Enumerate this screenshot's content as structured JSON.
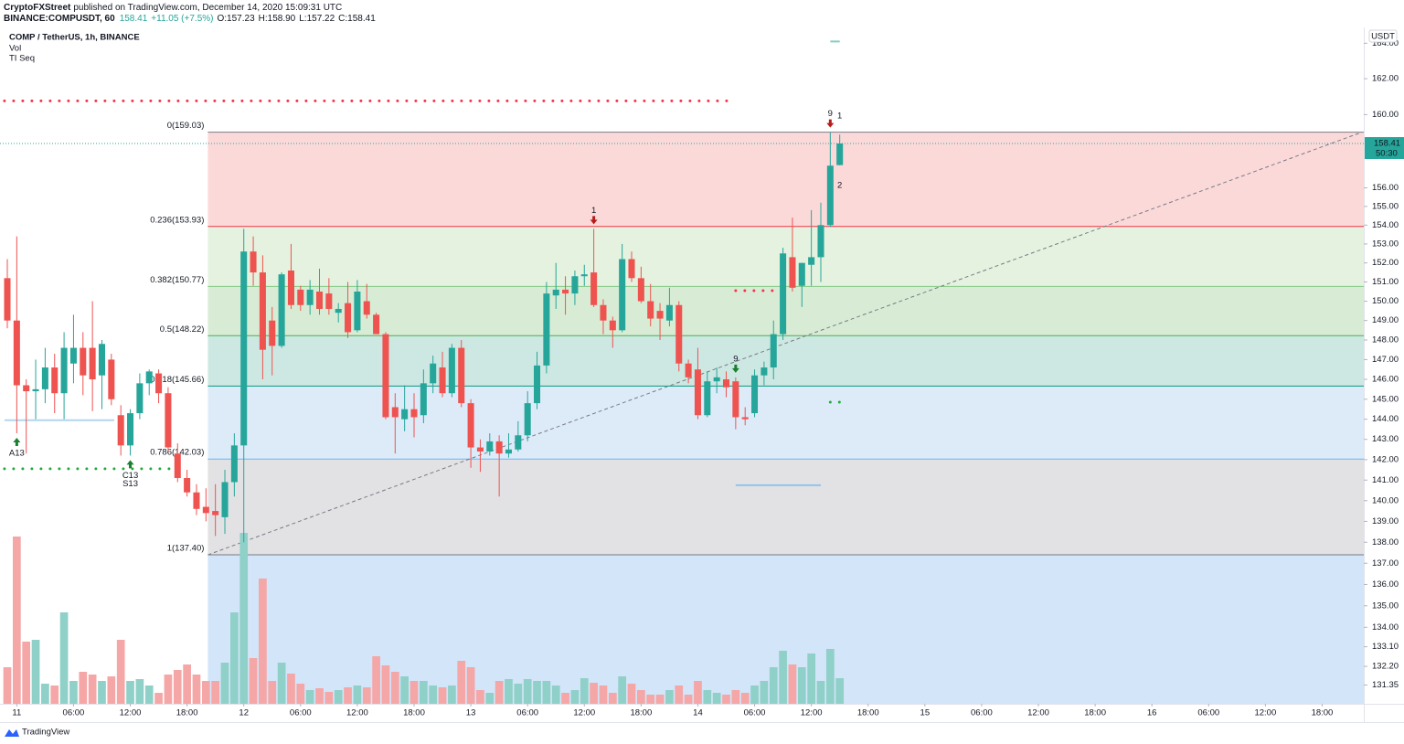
{
  "chart_data": {
    "type": "candlestick",
    "title": "COMP / TetherUS, 1h, BINANCE",
    "indicators": [
      "Vol",
      "TI Seq"
    ],
    "header": {
      "publisher": "CryptoFXStreet",
      "published": "published on TradingView.com, December 14, 2020 15:09:31 UTC",
      "symbol": "BINANCE:COMPUSDT, 60",
      "change": "+11.05 (+7.5%)",
      "ohlc": [
        "O:157.23",
        "H:158.90",
        "L:157.22",
        "C:158.41"
      ]
    },
    "currency": "USDT",
    "countdown": "50:30",
    "brand": "TradingView",
    "log_scale": true,
    "grid": false,
    "up_color": "#26a69a",
    "down_color": "#ef5350",
    "volume_up_color": "#8fd0c8",
    "volume_down_color": "#f5a6a6",
    "ylim": [
      130.5,
      164.9
    ],
    "yticks": [
      {
        "value": 164,
        "label": "164.00"
      },
      {
        "value": 162,
        "label": "162.00"
      },
      {
        "value": 160,
        "label": "160.00"
      },
      {
        "value": 156,
        "label": "156.00"
      },
      {
        "value": 155,
        "label": "155.00"
      },
      {
        "value": 154,
        "label": "154.00"
      },
      {
        "value": 153,
        "label": "153.00"
      },
      {
        "value": 152,
        "label": "152.00"
      },
      {
        "value": 151,
        "label": "151.00"
      },
      {
        "value": 150,
        "label": "150.00"
      },
      {
        "value": 149,
        "label": "149.00"
      },
      {
        "value": 148,
        "label": "148.00"
      },
      {
        "value": 147,
        "label": "147.00"
      },
      {
        "value": 146,
        "label": "146.00"
      },
      {
        "value": 145,
        "label": "145.00"
      },
      {
        "value": 144,
        "label": "144.00"
      },
      {
        "value": 143,
        "label": "143.00"
      },
      {
        "value": 142,
        "label": "142.00"
      },
      {
        "value": 141,
        "label": "141.00"
      },
      {
        "value": 140,
        "label": "140.00"
      },
      {
        "value": 139,
        "label": "139.00"
      },
      {
        "value": 138,
        "label": "138.00"
      },
      {
        "value": 137,
        "label": "137.00"
      },
      {
        "value": 136,
        "label": "136.00"
      },
      {
        "value": 135,
        "label": "135.00"
      },
      {
        "value": 134,
        "label": "134.00"
      },
      {
        "value": 133.1,
        "label": "133.10"
      },
      {
        "value": 132.2,
        "label": "132.20"
      },
      {
        "value": 131.35,
        "label": "131.35"
      }
    ],
    "xlim": [
      -0.773,
      143.4
    ],
    "xticks": [
      {
        "value": 1,
        "label": "11"
      },
      {
        "value": 7,
        "label": "06:00"
      },
      {
        "value": 13,
        "label": "12:00"
      },
      {
        "value": 19,
        "label": "18:00"
      },
      {
        "value": 25,
        "label": "12"
      },
      {
        "value": 31,
        "label": "06:00"
      },
      {
        "value": 37,
        "label": "12:00"
      },
      {
        "value": 43,
        "label": "18:00"
      },
      {
        "value": 49,
        "label": "13"
      },
      {
        "value": 55,
        "label": "06:00"
      },
      {
        "value": 61,
        "label": "12:00"
      },
      {
        "value": 67,
        "label": "18:00"
      },
      {
        "value": 73,
        "label": "14"
      },
      {
        "value": 79,
        "label": "06:00"
      },
      {
        "value": 85,
        "label": "12:00"
      },
      {
        "value": 91,
        "label": "18:00"
      },
      {
        "value": 97,
        "label": "15"
      },
      {
        "value": 103,
        "label": "06:00"
      },
      {
        "value": 109,
        "label": "12:00"
      },
      {
        "value": 115,
        "label": "18:00"
      },
      {
        "value": 121,
        "label": "16"
      },
      {
        "value": 127,
        "label": "06:00"
      },
      {
        "value": 133,
        "label": "12:00"
      },
      {
        "value": 139,
        "label": "18:00"
      }
    ],
    "open": [
      151.2,
      149.0,
      145.7,
      145.4,
      145.5,
      146.6,
      145.3,
      146.8,
      147.6,
      147.6,
      146.2,
      147.0,
      144.2,
      142.7,
      144.3,
      145.8,
      146.3,
      145.3,
      142.3,
      141.1,
      140.4,
      139.7,
      139.5,
      139.2,
      140.9,
      142.7,
      152.6,
      151.5,
      149.0,
      147.7,
      151.6,
      150.6,
      149.8,
      150.5,
      150.4,
      149.4,
      149.9,
      148.5,
      150.0,
      149.3,
      148.3,
      144.6,
      144.0,
      144.5,
      144.2,
      145.8,
      146.6,
      145.3,
      147.6,
      144.8,
      142.6,
      142.4,
      142.9,
      142.3,
      142.5,
      143.2,
      144.8,
      146.7,
      150.3,
      150.6,
      150.4,
      151.3,
      151.5,
      149.8,
      149.0,
      148.5,
      152.2,
      151.2,
      150.0,
      149.5,
      149.0,
      149.8,
      146.8,
      146.5,
      144.2,
      145.9,
      146.0,
      145.9,
      144.1,
      144.3,
      146.2,
      146.6,
      148.3,
      152.3,
      150.8,
      151.9,
      152.3,
      154.0,
      157.23
    ],
    "high": [
      152.2,
      153.4,
      146.0,
      147.0,
      147.6,
      147.3,
      148.4,
      149.3,
      148.4,
      150.0,
      148.0,
      147.3,
      144.7,
      144.5,
      146.3,
      146.5,
      146.5,
      145.6,
      142.8,
      141.5,
      140.8,
      140.6,
      140.8,
      141.5,
      143.3,
      153.8,
      153.4,
      152.4,
      149.7,
      151.5,
      153.0,
      150.8,
      151.1,
      151.7,
      151.2,
      149.9,
      151.0,
      151.1,
      150.9,
      149.4,
      148.4,
      145.3,
      145.7,
      145.3,
      146.5,
      147.2,
      147.4,
      147.8,
      148.0,
      145.0,
      143.0,
      143.3,
      143.2,
      143.3,
      143.9,
      145.4,
      147.4,
      151.0,
      152.0,
      151.3,
      151.6,
      151.9,
      153.8,
      150.1,
      149.2,
      153.0,
      152.6,
      151.8,
      150.9,
      149.9,
      150.7,
      150.0,
      147.0,
      147.6,
      146.4,
      146.6,
      146.4,
      146.1,
      144.6,
      146.5,
      146.9,
      149.0,
      152.8,
      154.4,
      152.0,
      154.8,
      155.2,
      159.03,
      158.9
    ],
    "low": [
      148.6,
      143.3,
      142.3,
      144.0,
      144.8,
      144.3,
      144.0,
      145.8,
      145.2,
      144.4,
      144.5,
      144.7,
      142.2,
      142.2,
      144.0,
      145.2,
      144.8,
      142.4,
      140.9,
      140.2,
      139.3,
      139.0,
      138.3,
      138.4,
      140.2,
      138.0,
      150.8,
      146.0,
      146.2,
      147.6,
      149.6,
      149.5,
      149.3,
      149.3,
      149.3,
      148.9,
      148.1,
      148.4,
      149.1,
      148.3,
      144.0,
      142.3,
      143.4,
      143.1,
      143.8,
      145.3,
      145.1,
      145.1,
      144.6,
      141.6,
      141.4,
      142.2,
      140.2,
      142.1,
      142.4,
      142.9,
      144.5,
      146.3,
      149.6,
      149.3,
      149.8,
      150.8,
      149.7,
      148.3,
      147.6,
      148.4,
      151.0,
      149.9,
      148.7,
      148.0,
      148.7,
      146.4,
      145.8,
      144.0,
      144.1,
      145.3,
      145.1,
      143.5,
      143.7,
      144.1,
      145.7,
      146.0,
      148.0,
      150.5,
      149.7,
      150.8,
      151.0,
      153.9,
      157.22
    ],
    "close": [
      149.0,
      145.7,
      145.4,
      145.5,
      146.6,
      145.3,
      147.6,
      147.6,
      146.2,
      146.0,
      147.8,
      145.0,
      142.7,
      144.3,
      145.8,
      146.4,
      145.3,
      142.6,
      141.1,
      140.4,
      139.6,
      139.4,
      139.3,
      140.9,
      142.7,
      152.6,
      151.5,
      147.5,
      147.7,
      151.4,
      149.8,
      149.8,
      150.6,
      149.6,
      149.6,
      149.6,
      148.4,
      150.5,
      149.3,
      148.3,
      144.1,
      144.1,
      144.5,
      144.1,
      145.8,
      146.8,
      145.3,
      147.6,
      144.8,
      142.6,
      142.4,
      142.9,
      142.3,
      142.5,
      143.2,
      144.8,
      146.7,
      150.4,
      150.6,
      150.4,
      151.3,
      151.4,
      149.8,
      149.0,
      148.5,
      152.2,
      151.2,
      150.0,
      149.1,
      149.1,
      149.8,
      146.8,
      146.1,
      144.2,
      145.9,
      146.1,
      145.6,
      144.1,
      144.0,
      146.2,
      146.6,
      148.3,
      152.5,
      150.7,
      152.0,
      152.3,
      154.0,
      157.2,
      158.41
    ],
    "volume": [
      40,
      183,
      68,
      70,
      22,
      20,
      100,
      25,
      35,
      32,
      25,
      30,
      70,
      25,
      27,
      20,
      12,
      32,
      37,
      43,
      32,
      25,
      25,
      45,
      100,
      187,
      50,
      137,
      25,
      45,
      33,
      22,
      15,
      17,
      13,
      15,
      18,
      20,
      18,
      52,
      42,
      35,
      30,
      25,
      25,
      20,
      18,
      20,
      47,
      40,
      15,
      12,
      25,
      27,
      22,
      27,
      25,
      25,
      20,
      12,
      15,
      28,
      23,
      20,
      12,
      30,
      22,
      15,
      10,
      10,
      15,
      20,
      10,
      25,
      15,
      12,
      10,
      15,
      12,
      20,
      25,
      40,
      58,
      43,
      40,
      55,
      25,
      60,
      28
    ],
    "vlim": [
      0,
      250
    ],
    "fib": {
      "start": 21.2,
      "levels": [
        {
          "value": 159.03,
          "label": "0(159.03)",
          "color": "#787b86",
          "fill": "#fcd9d9"
        },
        {
          "value": 153.93,
          "label": "0.236(153.93)",
          "color": "#f23645",
          "fill": "#e4f2df"
        },
        {
          "value": 150.77,
          "label": "0.382(150.77)",
          "color": "#81c784",
          "fill": "#d8ecd5"
        },
        {
          "value": 148.22,
          "label": "0.5(148.22)",
          "color": "#4caf50",
          "fill": "#cde8e3"
        },
        {
          "value": 145.66,
          "label": "0.618(145.66)",
          "color": "#089981",
          "fill": "#ddebf9"
        },
        {
          "value": 142.03,
          "label": "0.786(142.03)",
          "color": "#64b5f6",
          "fill": "#e2e2e4"
        },
        {
          "value": 137.4,
          "label": "1(137.40)",
          "color": "#787b86",
          "fill": "#d3e5f8"
        }
      ]
    },
    "trendline": {
      "from": [
        21.2,
        137.4
      ],
      "to": [
        143.2,
        159.03
      ],
      "color": "#787b86"
    },
    "levels": [
      {
        "value": 160.76,
        "from": -0.3,
        "to": 76.3,
        "color": "#f23645",
        "style": "dots"
      },
      {
        "value": 141.55,
        "from": -0.3,
        "to": 17.5,
        "color": "#22ab3b",
        "style": "dots"
      },
      {
        "value": 150.55,
        "from": 77,
        "to": 81,
        "color": "#f23645",
        "style": "dots"
      },
      {
        "value": 144.85,
        "from": 87,
        "to": 88,
        "color": "#22ab3b",
        "style": "dots"
      },
      {
        "value": 143.95,
        "from": -0.3,
        "to": 11.3,
        "color": "#b2d6f0",
        "style": "solid"
      },
      {
        "value": 140.75,
        "from": 77,
        "to": 86,
        "color": "#90c3ec",
        "style": "solid"
      },
      {
        "value": 164.1,
        "from": 87,
        "to": 88,
        "color": "#7fd0c0",
        "style": "solid"
      }
    ],
    "annotations": [
      {
        "text": "A13",
        "index": 1,
        "side": "below",
        "color": "#2196f3",
        "arrow": "#1b7f2f"
      },
      {
        "text": "C13",
        "index": 13,
        "side": "below",
        "color": "#9c6dbf",
        "arrow": "#1b7f2f"
      },
      {
        "text": "S13",
        "index": 13,
        "side": "below",
        "color": "#f7931a"
      },
      {
        "text": "1",
        "index": 62,
        "side": "above",
        "color": "#f23645",
        "arrow": "#b71c1c"
      },
      {
        "text": "9",
        "index": 77,
        "side": "above",
        "color": "#f23645",
        "arrow": "#1b7f2f"
      },
      {
        "text": "9",
        "index": 87,
        "side": "above",
        "color": "#22ab3b",
        "arrow": "#b71c1c"
      },
      {
        "text": "1",
        "index": 88,
        "side": "above",
        "color": "#22ab3b"
      },
      {
        "text": "2",
        "index": 88,
        "side": "below",
        "color": "#22ab3b"
      }
    ]
  }
}
